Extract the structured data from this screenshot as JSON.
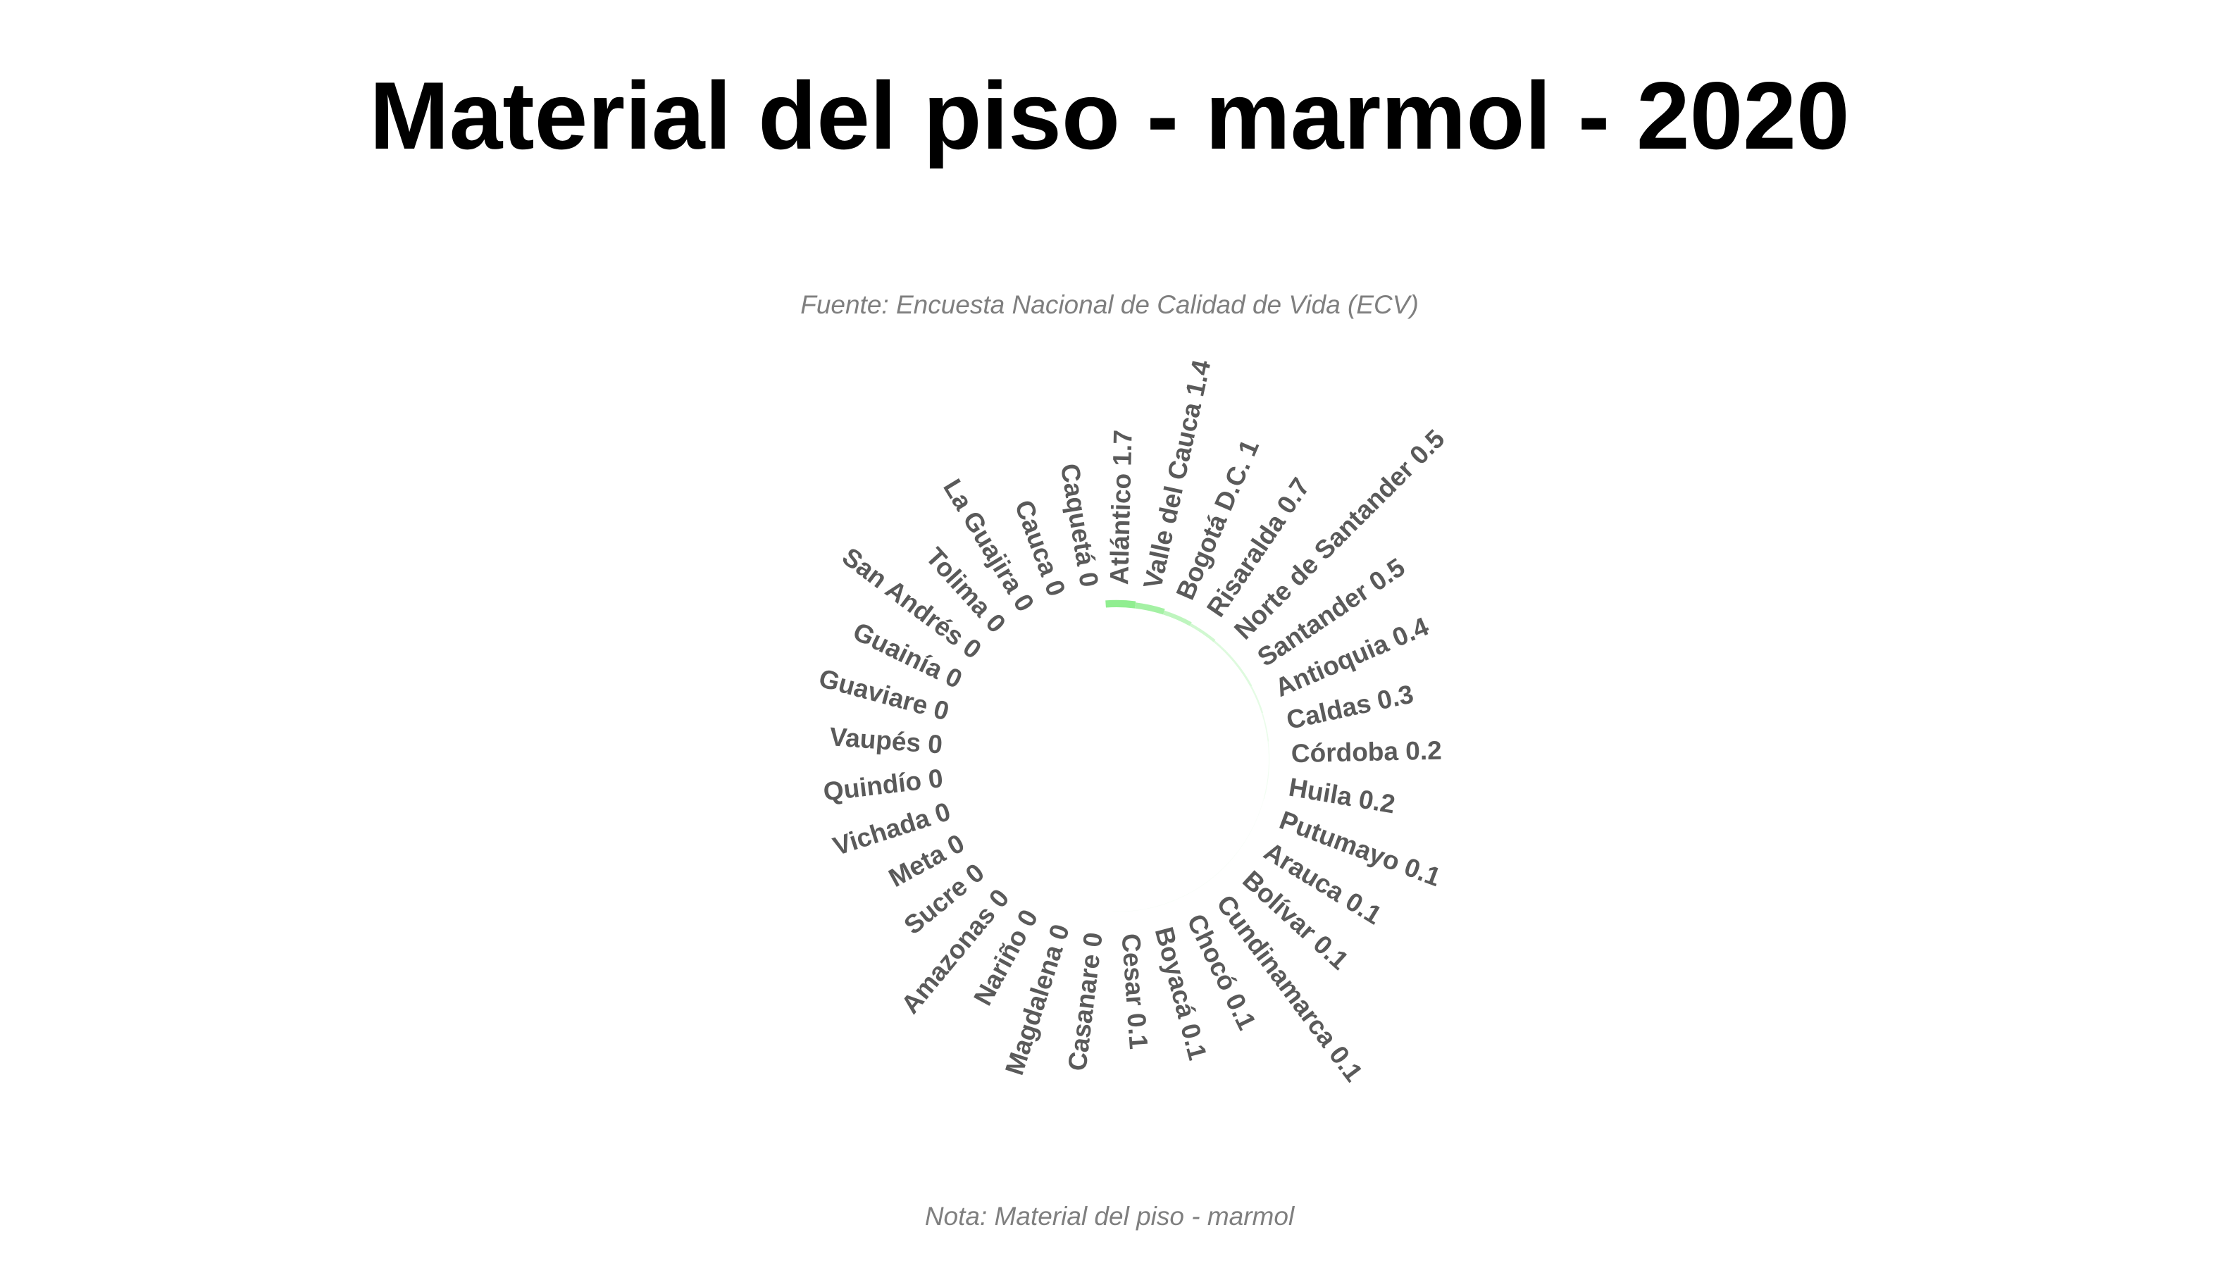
{
  "chart_data": {
    "type": "bar",
    "subtype": "circular-barplot",
    "title": "Material del piso - marmol - 2020",
    "subtitle": "Fuente: Encuesta Nacional de Calidad de Vida (ECV)",
    "caption": "Nota: Material del piso - marmol",
    "xlabel": "",
    "ylabel": "",
    "ylim": [
      0,
      1.7
    ],
    "grid": false,
    "legend": "none",
    "colors": {
      "bar_high": "#90ee90",
      "bar_low": "#ffffff",
      "label": "#5a5a5a"
    },
    "categories": [
      "Atlántico",
      "Valle del Cauca",
      "Bogotá D.C.",
      "Risaralda",
      "Norte de Santander",
      "Santander",
      "Antioquia",
      "Caldas",
      "Córdoba",
      "Huila",
      "Putumayo",
      "Arauca",
      "Bolívar",
      "Cundinamarca",
      "Chocó",
      "Boyacá",
      "Cesar",
      "Casanare",
      "Magdalena",
      "Nariño",
      "Amazonas",
      "Sucre",
      "Meta",
      "Vichada",
      "Quindío",
      "Vaupés",
      "Guaviare",
      "Guainía",
      "San Andrés",
      "Tolima",
      "La Guajira",
      "Cauca",
      "Caquetá"
    ],
    "values": [
      1.7,
      1.4,
      1,
      0.7,
      0.5,
      0.5,
      0.4,
      0.3,
      0.2,
      0.2,
      0.1,
      0.1,
      0.1,
      0.1,
      0.1,
      0.1,
      0.1,
      0,
      0,
      0,
      0,
      0,
      0,
      0,
      0,
      0,
      0,
      0,
      0,
      0,
      0,
      0,
      0
    ],
    "labels": [
      "Atlántico 1.7",
      "Valle del Cauca 1.4",
      "Bogotá D.C. 1",
      "Risaralda 0.7",
      "Norte de Santander 0.5",
      "Santander 0.5",
      "Antioquia 0.4",
      "Caldas 0.3",
      "Córdoba 0.2",
      "Huila 0.2",
      "Putumayo 0.1",
      "Arauca 0.1",
      "Bolívar 0.1",
      "Cundinamarca 0.1",
      "Chocó 0.1",
      "Boyacá 0.1",
      "Cesar 0.1",
      "Casanare 0",
      "Magdalena 0",
      "Nariño 0",
      "Amazonas 0",
      "Sucre 0",
      "Meta 0",
      "Vichada 0",
      "Quindío 0",
      "Vaupés 0",
      "Guaviare 0",
      "Guainía 0",
      "San Andrés 0",
      "Tolima 0",
      "La Guajira 0",
      "Cauca 0",
      "Caquetá 0"
    ]
  }
}
